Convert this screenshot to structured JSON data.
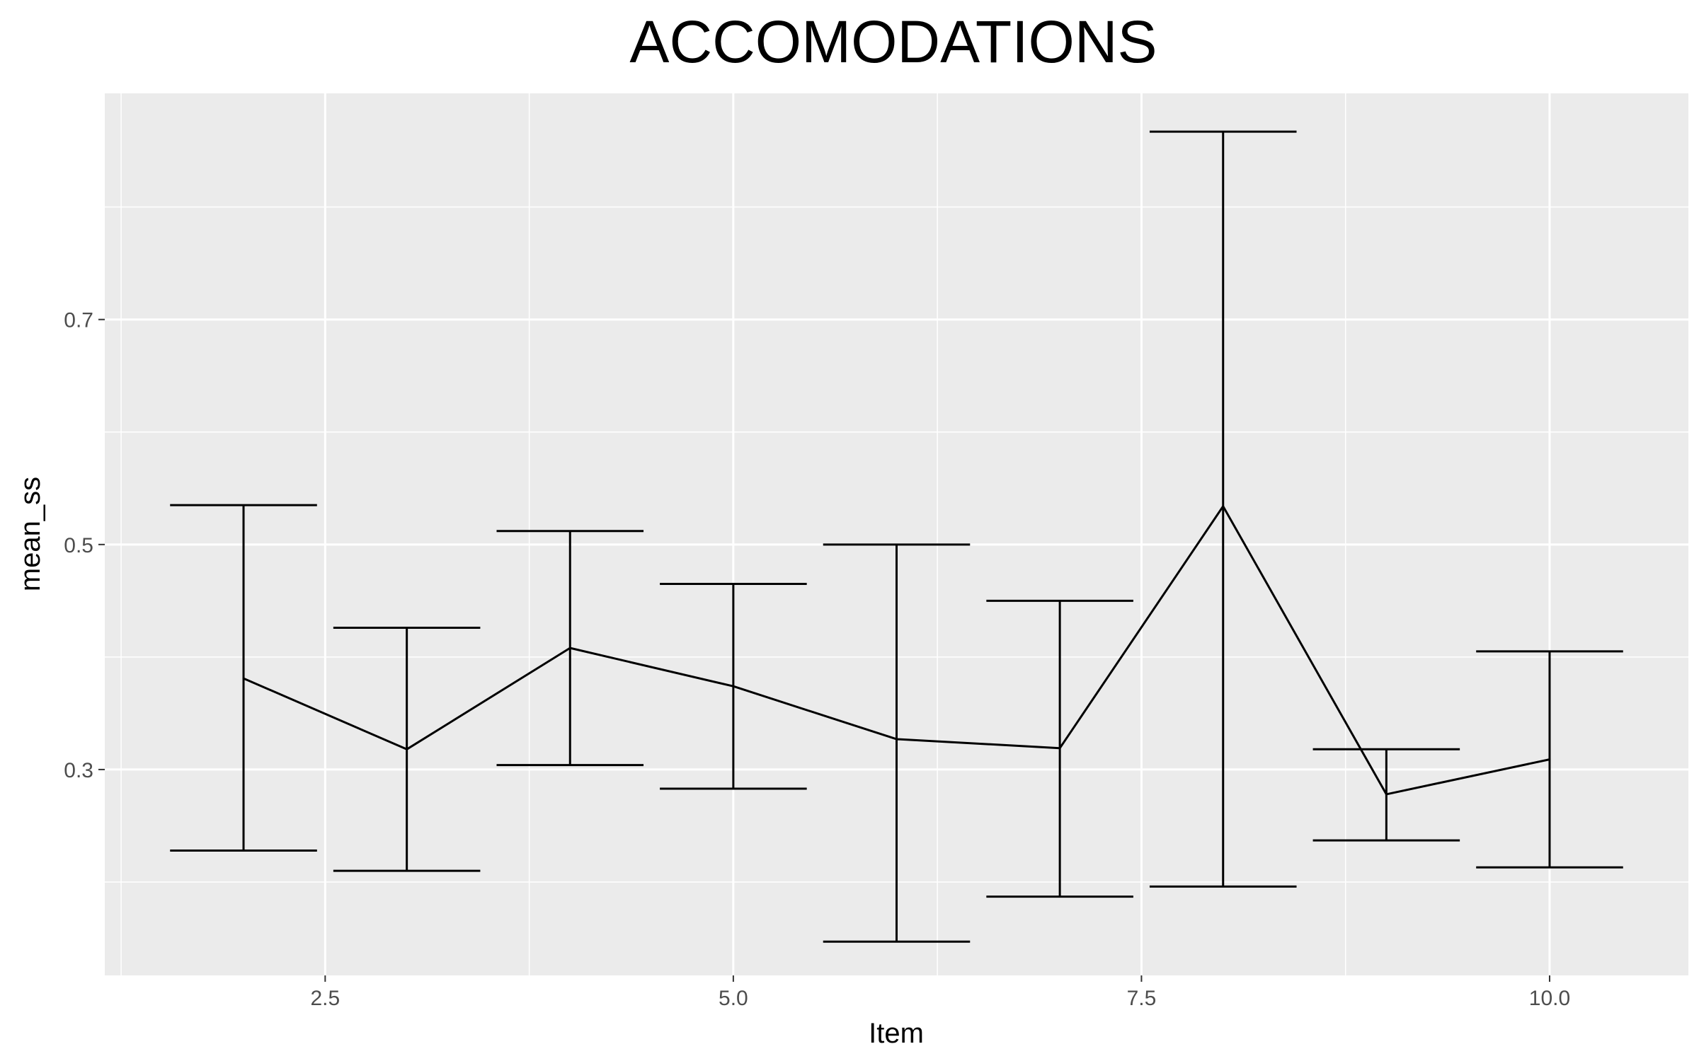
{
  "chart_data": {
    "type": "line",
    "title": "ACCOMODATIONS",
    "xlabel": "Item",
    "ylabel": "mean_ss",
    "xlim": [
      1.15,
      10.85
    ],
    "ylim": [
      0.117,
      0.901
    ],
    "x_ticks": [
      2.5,
      5.0,
      7.5,
      10.0
    ],
    "x_tick_labels": [
      "2.5",
      "5.0",
      "7.5",
      "10.0"
    ],
    "y_ticks": [
      0.3,
      0.5,
      0.7
    ],
    "y_tick_labels": [
      "0.3",
      "0.5",
      "0.7"
    ],
    "grid": true,
    "legend": "none",
    "series": [
      {
        "x": [
          2,
          3,
          4,
          5,
          6,
          7,
          8,
          9,
          10
        ],
        "y": [
          0.381,
          0.318,
          0.408,
          0.374,
          0.327,
          0.319,
          0.534,
          0.278,
          0.309
        ],
        "ymin": [
          0.228,
          0.21,
          0.304,
          0.283,
          0.147,
          0.187,
          0.196,
          0.237,
          0.213
        ],
        "ymax": [
          0.535,
          0.426,
          0.512,
          0.465,
          0.5,
          0.45,
          0.867,
          0.318,
          0.405
        ],
        "errorbar_width": 0.9
      }
    ],
    "colors": {
      "panel_background": "#ebebeb",
      "grid": "#ffffff",
      "line": "#000000",
      "tick": "#333333"
    }
  }
}
